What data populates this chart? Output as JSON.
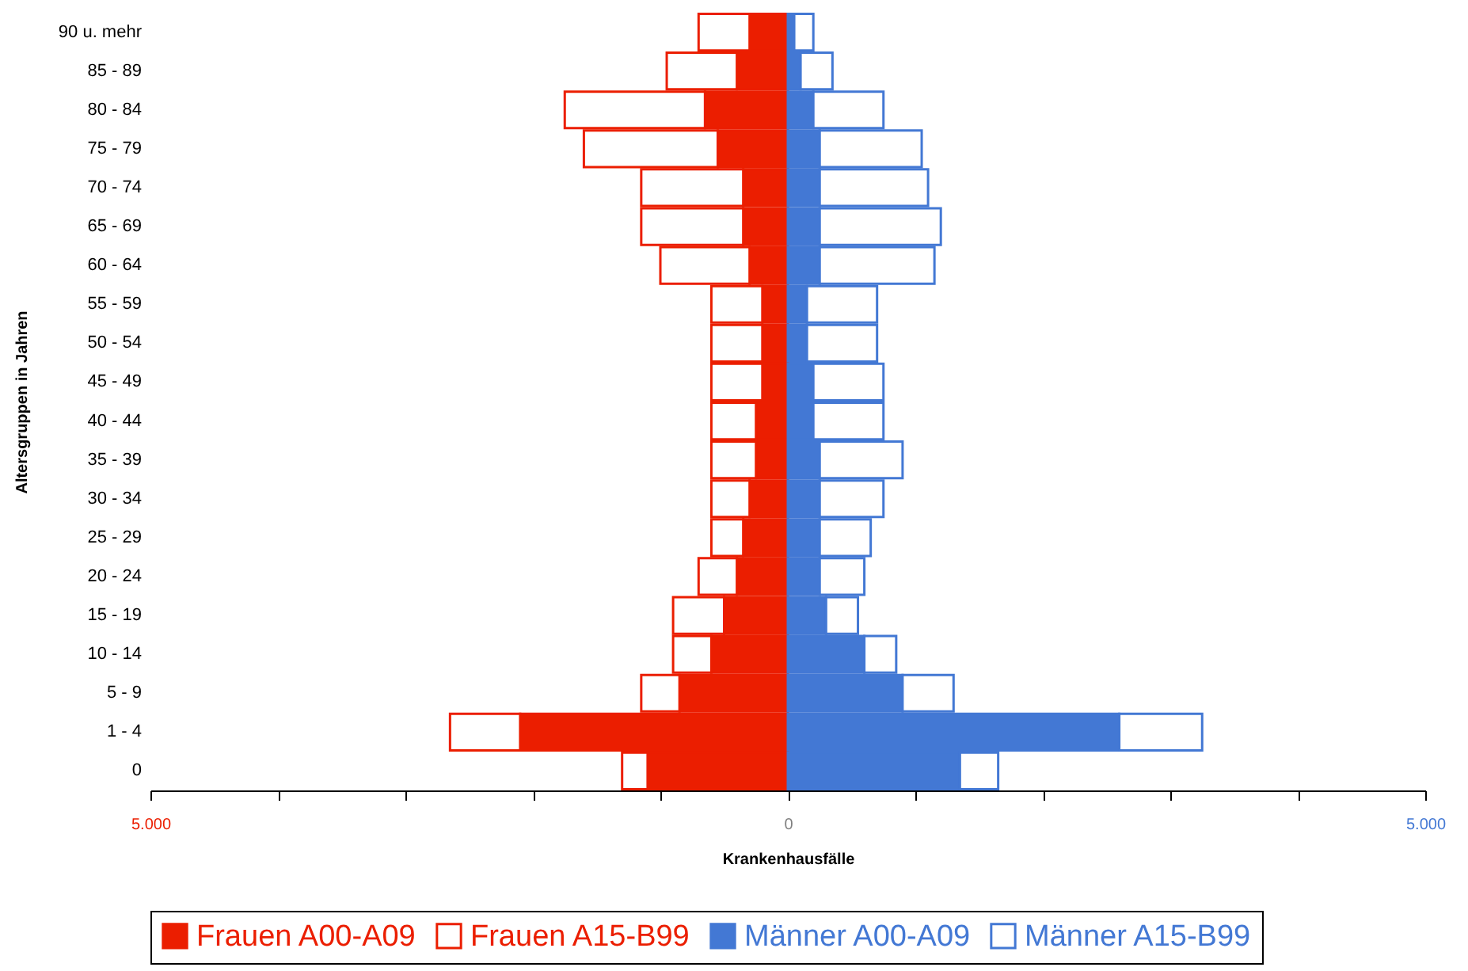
{
  "chart_data": {
    "type": "bar",
    "orientation": "horizontal",
    "stacked": true,
    "xlabel": "Krankenhausfälle",
    "ylabel": "Altersgruppen in Jahren",
    "legend": "bottom",
    "categories": [
      "90 u. mehr",
      "85 - 89",
      "80 - 84",
      "75 - 79",
      "70 - 74",
      "65 - 69",
      "60 - 64",
      "55 - 59",
      "50 - 54",
      "45 - 49",
      "40 - 44",
      "35 - 39",
      "30 - 34",
      "25 - 29",
      "20 - 24",
      "15 - 19",
      "10 - 14",
      "5 -  9",
      "1 -  4",
      "0"
    ],
    "xlim": [
      -5000,
      5000
    ],
    "xticks": [
      {
        "value": -5000,
        "label": "5.000"
      },
      {
        "value": -4000,
        "label": null
      },
      {
        "value": -3000,
        "label": null
      },
      {
        "value": -2000,
        "label": null
      },
      {
        "value": -1000,
        "label": null
      },
      0,
      {
        "value": 1000,
        "label": null
      },
      {
        "value": 2000,
        "label": null
      },
      {
        "value": 3000,
        "label": null
      },
      {
        "value": 4000,
        "label": null
      },
      {
        "value": 5000,
        "label": "5.000"
      }
    ],
    "series": [
      {
        "name": "Frauen A00-A09",
        "color": "#eb1e00",
        "values": [
          -300,
          -400,
          -650,
          -550,
          -350,
          -350,
          -300,
          -200,
          -200,
          -200,
          -250,
          -250,
          -300,
          -350,
          -400,
          -500,
          -600,
          -850,
          -2100,
          -1100
        ]
      },
      {
        "name": "Frauen A15-B99",
        "color": "#eb1e00",
        "values": [
          -400,
          -550,
          -1100,
          -1050,
          -800,
          -800,
          -700,
          -400,
          -400,
          -400,
          -350,
          -350,
          -300,
          -250,
          -300,
          -400,
          -300,
          -300,
          -550,
          -200
        ]
      },
      {
        "name": "Männer A00-A09",
        "color": "#4378d4",
        "values": [
          50,
          100,
          200,
          250,
          250,
          250,
          250,
          150,
          150,
          200,
          200,
          250,
          250,
          250,
          250,
          300,
          600,
          900,
          2600,
          1350
        ]
      },
      {
        "name": "Männer A15-B99",
        "color": "#4378d4",
        "values": [
          150,
          250,
          550,
          800,
          850,
          950,
          900,
          550,
          550,
          550,
          550,
          650,
          500,
          400,
          350,
          250,
          250,
          400,
          650,
          300
        ]
      }
    ]
  }
}
